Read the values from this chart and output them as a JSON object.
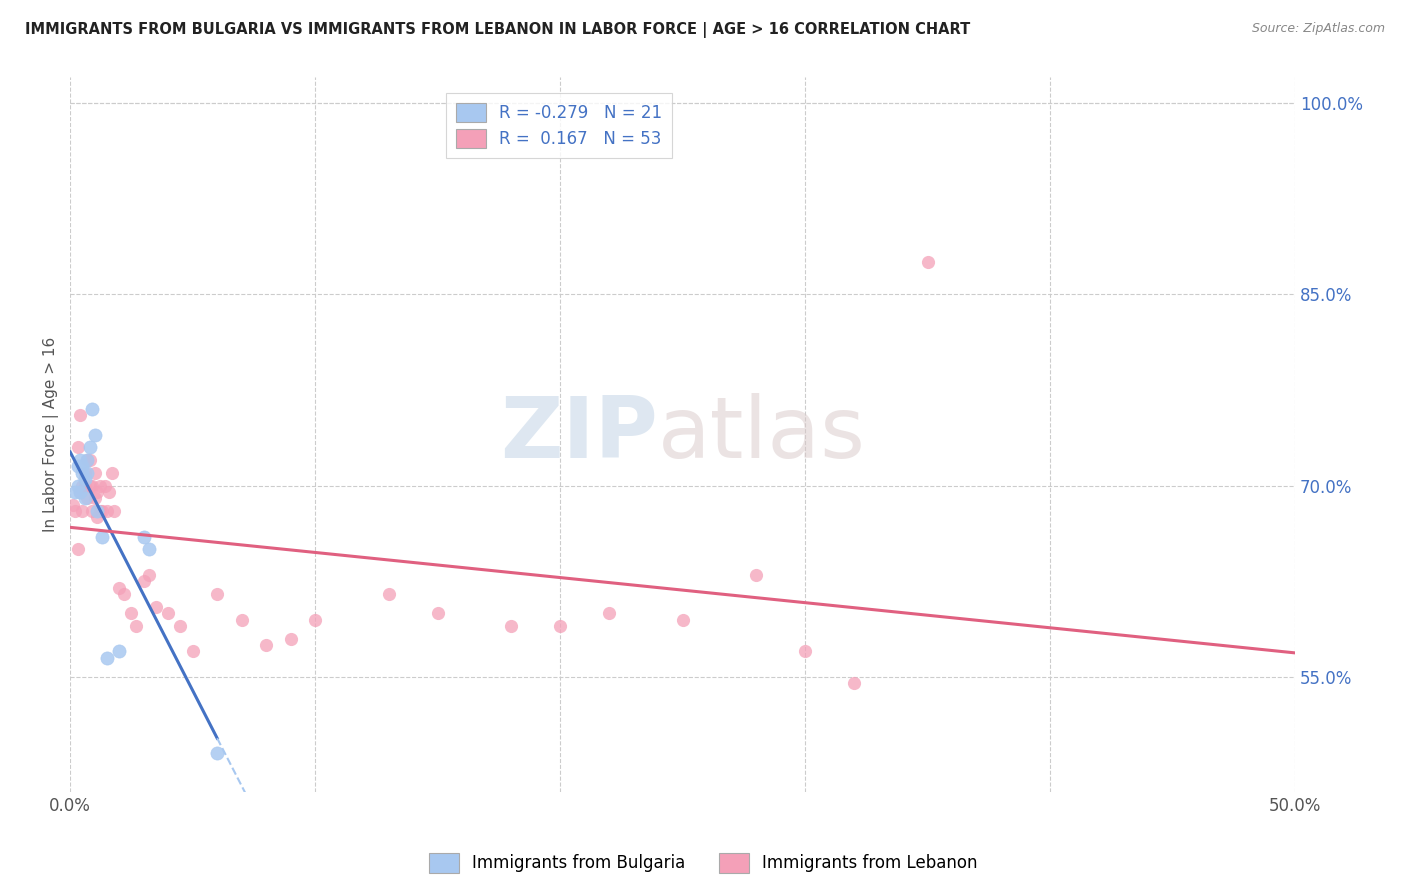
{
  "title": "IMMIGRANTS FROM BULGARIA VS IMMIGRANTS FROM LEBANON IN LABOR FORCE | AGE > 16 CORRELATION CHART",
  "source": "Source: ZipAtlas.com",
  "ylabel": "In Labor Force | Age > 16",
  "xlim": [
    0.0,
    0.5
  ],
  "ylim": [
    0.46,
    1.02
  ],
  "xticks": [
    0.0,
    0.1,
    0.2,
    0.3,
    0.4,
    0.5
  ],
  "xticklabels": [
    "0.0%",
    "",
    "",
    "",
    "",
    "50.0%"
  ],
  "yticks_right": [
    0.55,
    0.7,
    0.85,
    1.0
  ],
  "yticklabels_right": [
    "55.0%",
    "70.0%",
    "85.0%",
    "100.0%"
  ],
  "r_bulgaria": -0.279,
  "n_bulgaria": 21,
  "r_lebanon": 0.167,
  "n_lebanon": 53,
  "color_bulgaria": "#A8C8F0",
  "color_lebanon": "#F4A0B8",
  "line_bulgaria_solid": "#4472C4",
  "line_lebanon_solid": "#E06080",
  "line_bulgaria_dashed": "#A8C8F0",
  "watermark_zip": "ZIP",
  "watermark_atlas": "atlas",
  "bulgaria_x": [
    0.002,
    0.003,
    0.003,
    0.004,
    0.004,
    0.005,
    0.005,
    0.006,
    0.006,
    0.007,
    0.007,
    0.008,
    0.009,
    0.01,
    0.011,
    0.013,
    0.015,
    0.02,
    0.03,
    0.032,
    0.06
  ],
  "bulgaria_y": [
    0.695,
    0.715,
    0.7,
    0.72,
    0.695,
    0.715,
    0.71,
    0.705,
    0.69,
    0.72,
    0.71,
    0.73,
    0.76,
    0.74,
    0.68,
    0.66,
    0.565,
    0.57,
    0.66,
    0.65,
    0.49
  ],
  "lebanon_x": [
    0.001,
    0.002,
    0.003,
    0.003,
    0.004,
    0.004,
    0.005,
    0.005,
    0.006,
    0.006,
    0.007,
    0.007,
    0.008,
    0.008,
    0.009,
    0.009,
    0.01,
    0.01,
    0.011,
    0.011,
    0.012,
    0.012,
    0.013,
    0.014,
    0.015,
    0.016,
    0.017,
    0.018,
    0.02,
    0.022,
    0.025,
    0.027,
    0.03,
    0.032,
    0.035,
    0.04,
    0.045,
    0.05,
    0.06,
    0.07,
    0.08,
    0.09,
    0.1,
    0.13,
    0.15,
    0.18,
    0.2,
    0.22,
    0.25,
    0.28,
    0.3,
    0.32,
    0.35
  ],
  "lebanon_y": [
    0.685,
    0.68,
    0.73,
    0.65,
    0.695,
    0.755,
    0.7,
    0.68,
    0.71,
    0.7,
    0.72,
    0.69,
    0.7,
    0.72,
    0.68,
    0.7,
    0.69,
    0.71,
    0.695,
    0.675,
    0.7,
    0.68,
    0.68,
    0.7,
    0.68,
    0.695,
    0.71,
    0.68,
    0.62,
    0.615,
    0.6,
    0.59,
    0.625,
    0.63,
    0.605,
    0.6,
    0.59,
    0.57,
    0.615,
    0.595,
    0.575,
    0.58,
    0.595,
    0.615,
    0.6,
    0.59,
    0.59,
    0.6,
    0.595,
    0.63,
    0.57,
    0.545,
    0.875
  ]
}
